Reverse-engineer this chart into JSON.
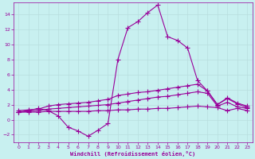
{
  "title": "",
  "xlabel": "Windchill (Refroidissement éolien,°C)",
  "ylabel": "",
  "bg_color": "#c8f0f0",
  "line_color": "#990099",
  "grid_color": "#b8dede",
  "xlim": [
    -0.5,
    23.5
  ],
  "ylim": [
    -3.0,
    15.5
  ],
  "yticks": [
    -2,
    0,
    2,
    4,
    6,
    8,
    10,
    12,
    14
  ],
  "xticks": [
    0,
    1,
    2,
    3,
    4,
    5,
    6,
    7,
    8,
    9,
    10,
    11,
    12,
    13,
    14,
    15,
    16,
    17,
    18,
    19,
    20,
    21,
    22,
    23
  ],
  "line1_x": [
    0,
    1,
    2,
    3,
    4,
    5,
    6,
    7,
    8,
    9,
    10,
    11,
    12,
    13,
    14,
    15,
    16,
    17,
    18,
    19,
    20,
    21,
    22,
    23
  ],
  "line1_y": [
    1.0,
    1.2,
    1.5,
    1.2,
    0.5,
    -1.0,
    -1.5,
    -2.2,
    -1.4,
    -0.5,
    8.0,
    12.2,
    13.0,
    14.2,
    15.2,
    11.0,
    10.5,
    9.5,
    5.2,
    3.8,
    2.0,
    2.8,
    2.1,
    1.6
  ],
  "line2_x": [
    0,
    1,
    2,
    3,
    4,
    5,
    6,
    7,
    8,
    9,
    10,
    11,
    12,
    13,
    14,
    15,
    16,
    17,
    18,
    19,
    20,
    21,
    22,
    23
  ],
  "line2_y": [
    1.2,
    1.3,
    1.4,
    1.8,
    2.0,
    2.1,
    2.2,
    2.3,
    2.5,
    2.7,
    3.2,
    3.4,
    3.6,
    3.7,
    3.9,
    4.1,
    4.3,
    4.5,
    4.7,
    3.8,
    2.0,
    2.9,
    2.2,
    1.8
  ],
  "line3_x": [
    0,
    1,
    2,
    3,
    4,
    5,
    6,
    7,
    8,
    9,
    10,
    11,
    12,
    13,
    14,
    15,
    16,
    17,
    18,
    19,
    20,
    21,
    22,
    23
  ],
  "line3_y": [
    1.0,
    1.1,
    1.2,
    1.4,
    1.5,
    1.6,
    1.7,
    1.8,
    1.9,
    2.0,
    2.2,
    2.4,
    2.6,
    2.8,
    3.0,
    3.1,
    3.3,
    3.5,
    3.7,
    3.5,
    1.8,
    2.3,
    1.7,
    1.5
  ],
  "line4_x": [
    0,
    1,
    2,
    3,
    4,
    5,
    6,
    7,
    8,
    9,
    10,
    11,
    12,
    13,
    14,
    15,
    16,
    17,
    18,
    19,
    20,
    21,
    22,
    23
  ],
  "line4_y": [
    1.0,
    1.0,
    1.0,
    1.1,
    1.1,
    1.1,
    1.1,
    1.1,
    1.2,
    1.2,
    1.3,
    1.3,
    1.4,
    1.4,
    1.5,
    1.5,
    1.6,
    1.7,
    1.8,
    1.7,
    1.6,
    1.2,
    1.5,
    1.2
  ]
}
